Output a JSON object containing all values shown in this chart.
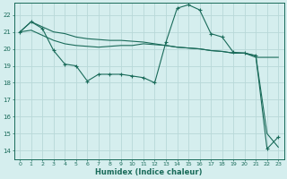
{
  "xlabel": "Humidex (Indice chaleur)",
  "xlim": [
    -0.5,
    23.5
  ],
  "ylim": [
    13.5,
    22.7
  ],
  "yticks": [
    14,
    15,
    16,
    17,
    18,
    19,
    20,
    21,
    22
  ],
  "xticks": [
    0,
    1,
    2,
    3,
    4,
    5,
    6,
    7,
    8,
    9,
    10,
    11,
    12,
    13,
    14,
    15,
    16,
    17,
    18,
    19,
    20,
    21,
    22,
    23
  ],
  "bg_color": "#d5eeee",
  "grid_color": "#b8d8d8",
  "line_color": "#1a6b5a",
  "series1": [
    21.0,
    21.6,
    21.3,
    21.0,
    20.9,
    20.7,
    20.6,
    20.55,
    20.5,
    20.5,
    20.45,
    20.4,
    20.3,
    20.2,
    20.1,
    20.05,
    20.0,
    19.9,
    19.85,
    19.75,
    19.75,
    19.5,
    19.5,
    19.5
  ],
  "series2": [
    21.0,
    21.6,
    21.2,
    19.9,
    19.1,
    19.0,
    18.1,
    18.5,
    18.5,
    18.5,
    18.4,
    18.3,
    18.0,
    20.4,
    22.4,
    22.6,
    22.3,
    20.9,
    20.7,
    19.8,
    19.75,
    19.6,
    14.1,
    14.8
  ],
  "series3": [
    21.0,
    21.1,
    20.8,
    20.5,
    20.3,
    20.2,
    20.15,
    20.1,
    20.15,
    20.2,
    20.2,
    20.3,
    20.25,
    20.2,
    20.1,
    20.05,
    20.0,
    19.9,
    19.85,
    19.75,
    19.75,
    19.6,
    15.0,
    14.2
  ]
}
